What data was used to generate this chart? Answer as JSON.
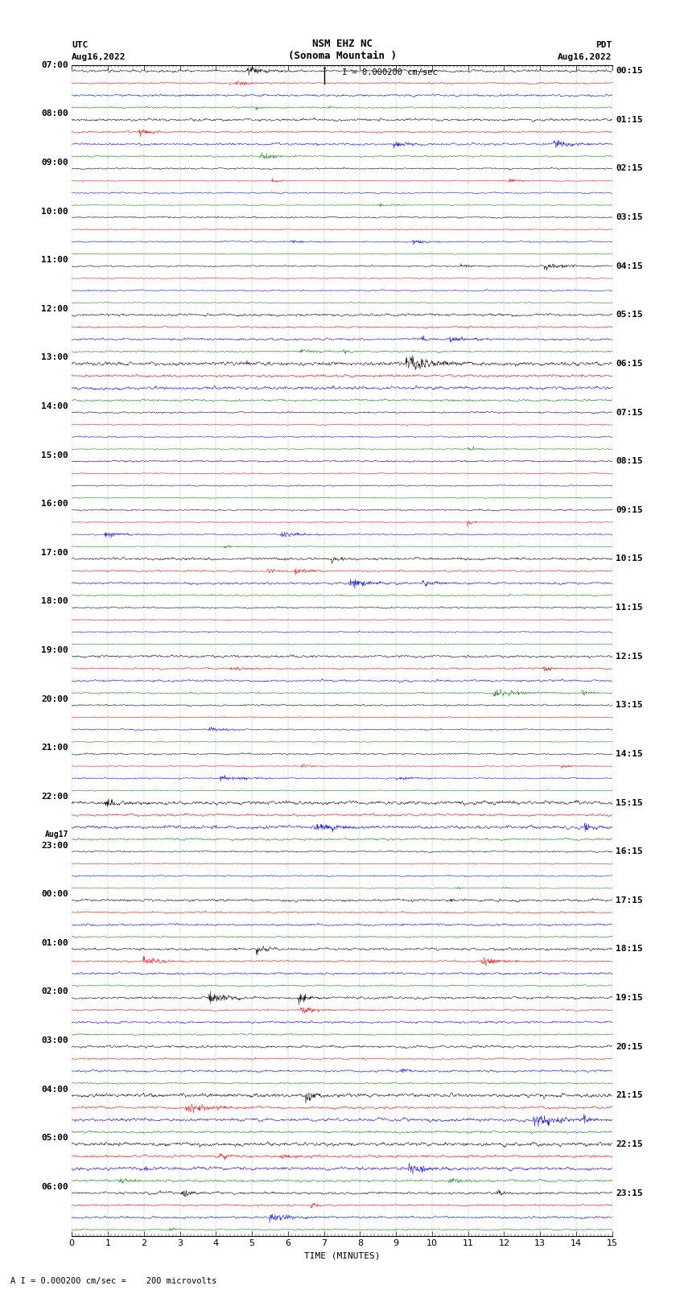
{
  "title_line1": "NSM EHZ NC",
  "title_line2": "(Sonoma Mountain )",
  "scale_label": "I = 0.000200 cm/sec",
  "left_header_line1": "UTC",
  "left_header_line2": "Aug16,2022",
  "right_header_line1": "PDT",
  "right_header_line2": "Aug16,2022",
  "left_times": [
    "07:00",
    "08:00",
    "09:00",
    "10:00",
    "11:00",
    "12:00",
    "13:00",
    "14:00",
    "15:00",
    "16:00",
    "17:00",
    "18:00",
    "19:00",
    "20:00",
    "21:00",
    "22:00",
    "23:00",
    "Aug17",
    "00:00",
    "01:00",
    "02:00",
    "03:00",
    "04:00",
    "05:00",
    "06:00"
  ],
  "left_times_is_aug17": [
    false,
    false,
    false,
    false,
    false,
    false,
    false,
    false,
    false,
    false,
    false,
    false,
    false,
    false,
    false,
    false,
    false,
    true,
    false,
    false,
    false,
    false,
    false,
    false,
    false
  ],
  "right_times": [
    "00:15",
    "01:15",
    "02:15",
    "03:15",
    "04:15",
    "05:15",
    "06:15",
    "07:15",
    "08:15",
    "09:15",
    "10:15",
    "11:15",
    "12:15",
    "13:15",
    "14:15",
    "15:15",
    "16:15",
    "17:15",
    "18:15",
    "19:15",
    "20:15",
    "21:15",
    "22:15",
    "23:15"
  ],
  "xlabel": "TIME (MINUTES)",
  "footer": "A I = 0.000200 cm/sec =    200 microvolts",
  "colors": [
    "black",
    "red",
    "blue",
    "green"
  ],
  "num_hours": 24,
  "traces_per_hour": 4,
  "xlim": [
    0,
    15
  ],
  "xticks": [
    0,
    1,
    2,
    3,
    4,
    5,
    6,
    7,
    8,
    9,
    10,
    11,
    12,
    13,
    14,
    15
  ],
  "bg_color": "white",
  "line_width": 0.35,
  "figwidth": 8.5,
  "figheight": 16.13
}
